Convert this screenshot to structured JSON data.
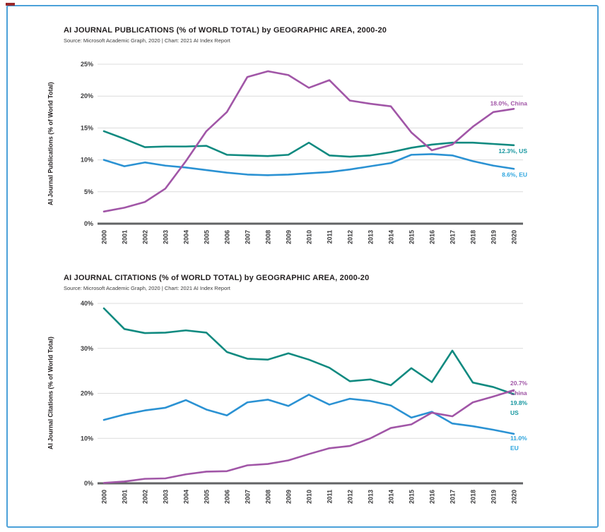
{
  "page": {
    "background": "#FFFFFF",
    "frame_border_color": "#4BA1D9",
    "corner_mark_color": "#99282A"
  },
  "chart_data": [
    {
      "type": "line",
      "title": "AI JOURNAL PUBLICATIONS (% of WORLD TOTAL) by GEOGRAPHIC AREA, 2000-20",
      "subtitle": "Source: Microsoft Academic Graph, 2020 | Chart: 2021 AI Index Report",
      "xlabel": "",
      "ylabel": "AI Journal Publications (% of World Total)",
      "x": [
        2000,
        2001,
        2002,
        2003,
        2004,
        2005,
        2006,
        2007,
        2008,
        2009,
        2010,
        2011,
        2012,
        2013,
        2014,
        2015,
        2016,
        2017,
        2018,
        2019,
        2020
      ],
      "ylim": [
        0,
        25
      ],
      "yticks": [
        {
          "value": 0,
          "label": "0%"
        },
        {
          "value": 5,
          "label": "5%"
        },
        {
          "value": 10,
          "label": "10%"
        },
        {
          "value": 15,
          "label": "15%"
        },
        {
          "value": 20,
          "label": "20%"
        },
        {
          "value": 25,
          "label": "25%"
        }
      ],
      "grid": true,
      "legend_position": "line-end-labels-right",
      "series": [
        {
          "name": "US",
          "color": "#108A80",
          "label_color": "#1797A0",
          "end_label_lines": [
            "12.3%, US"
          ],
          "values": [
            14.5,
            13.3,
            12.0,
            12.1,
            12.1,
            12.2,
            10.8,
            10.7,
            10.6,
            10.8,
            12.7,
            10.7,
            10.5,
            10.7,
            11.2,
            11.9,
            12.4,
            12.7,
            12.7,
            12.5,
            12.3
          ]
        },
        {
          "name": "EU",
          "color": "#2B92D3",
          "label_color": "#2FA6DF",
          "end_label_lines": [
            "8.6%, EU"
          ],
          "values": [
            10.0,
            9.0,
            9.6,
            9.1,
            8.8,
            8.4,
            8.0,
            7.7,
            7.6,
            7.7,
            7.9,
            8.1,
            8.5,
            9.0,
            9.5,
            10.8,
            10.9,
            10.7,
            9.8,
            9.1,
            8.6
          ]
        },
        {
          "name": "China",
          "color": "#A156A7",
          "label_color": "#A156A7",
          "end_label_lines": [
            "18.0%, China"
          ],
          "values": [
            1.9,
            2.5,
            3.4,
            5.5,
            9.8,
            14.5,
            17.5,
            23.0,
            23.9,
            23.3,
            21.3,
            22.5,
            19.3,
            18.8,
            18.4,
            14.3,
            11.5,
            12.4,
            15.2,
            17.5,
            18.0
          ]
        }
      ]
    },
    {
      "type": "line",
      "title": "AI JOURNAL CITATIONS (% of WORLD TOTAL) by GEOGRAPHIC AREA, 2000-20",
      "subtitle": "Source: Microsoft Academic Graph, 2020 | Chart: 2021 AI Index Report",
      "xlabel": "",
      "ylabel": "AI Journal Citations (% of World Total)",
      "x": [
        2000,
        2001,
        2002,
        2003,
        2004,
        2005,
        2006,
        2007,
        2008,
        2009,
        2010,
        2011,
        2012,
        2013,
        2014,
        2015,
        2016,
        2017,
        2018,
        2019,
        2020
      ],
      "ylim": [
        0,
        40
      ],
      "yticks": [
        {
          "value": 0,
          "label": "0%"
        },
        {
          "value": 10,
          "label": "10%"
        },
        {
          "value": 20,
          "label": "20%"
        },
        {
          "value": 30,
          "label": "30%"
        },
        {
          "value": 40,
          "label": "40%"
        }
      ],
      "grid": true,
      "legend_position": "line-end-labels-right",
      "series": [
        {
          "name": "US",
          "color": "#108A80",
          "label_color": "#1797A0",
          "end_label_lines": [
            "19.8%",
            "US"
          ],
          "values": [
            38.9,
            34.3,
            33.4,
            33.5,
            34.0,
            33.5,
            29.2,
            27.7,
            27.5,
            28.9,
            27.5,
            25.7,
            22.7,
            23.1,
            21.8,
            25.6,
            22.5,
            29.5,
            22.4,
            21.4,
            19.8
          ]
        },
        {
          "name": "EU",
          "color": "#2B92D3",
          "label_color": "#2FA6DF",
          "end_label_lines": [
            "11.0%",
            "EU"
          ],
          "values": [
            14.1,
            15.3,
            16.2,
            16.8,
            18.5,
            16.4,
            15.1,
            18.0,
            18.6,
            17.2,
            19.7,
            17.5,
            18.8,
            18.3,
            17.3,
            14.6,
            15.9,
            13.3,
            12.7,
            11.9,
            11.0
          ]
        },
        {
          "name": "China",
          "color": "#A156A7",
          "label_color": "#A156A7",
          "end_label_lines": [
            "20.7%",
            "China"
          ],
          "values": [
            0.1,
            0.4,
            1.0,
            1.1,
            2.0,
            2.6,
            2.7,
            4.0,
            4.3,
            5.1,
            6.5,
            7.8,
            8.3,
            10.0,
            12.3,
            13.1,
            15.7,
            14.9,
            18.0,
            19.3,
            20.7
          ]
        }
      ]
    }
  ]
}
